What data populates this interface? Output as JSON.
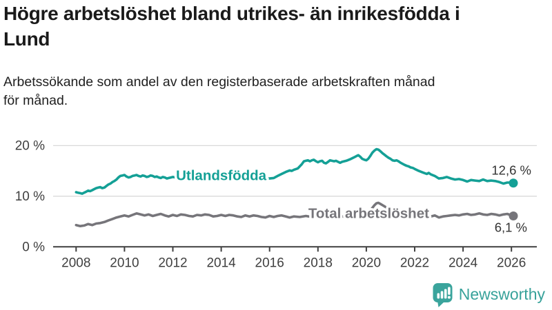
{
  "header": {
    "title": "Högre arbetslöshet bland utrikes- än inrikesfödda i\nLund",
    "subtitle": "Arbetssökande som andel av den registerbaserade arbetskraften månad\nför månad."
  },
  "footer": {
    "brand": "Newsworthy",
    "logo_icon": "bar-chart-speech-bubble-icon",
    "brand_color": "#38a29a"
  },
  "colors": {
    "accent_teal": "#14a096",
    "series_gray": "#76757a",
    "axis": "#3f3f3f",
    "gridline": "#d9d9d9",
    "value_label": "#333333"
  },
  "chart_data": {
    "type": "line",
    "title": "",
    "xlabel": "",
    "ylabel": "",
    "grid": "horizontal-only",
    "legend_position": "inline-on-line",
    "xlim": [
      2007.05,
      2027.05
    ],
    "ylim": [
      0,
      21.5
    ],
    "x_ticks": [
      2008,
      2010,
      2012,
      2014,
      2016,
      2018,
      2020,
      2022,
      2024,
      2026
    ],
    "x_tick_labels": [
      "2008",
      "2010",
      "2012",
      "2014",
      "2016",
      "2018",
      "2020",
      "2022",
      "2024",
      "2026"
    ],
    "y_ticks": [
      0,
      10,
      20
    ],
    "y_tick_labels": [
      "0 %",
      "10 %",
      "20 %"
    ],
    "series": [
      {
        "id": "utlandsfodda",
        "name": "Utlandsfödda",
        "color": "#14a096",
        "end_value": 12.6,
        "end_label": "12,6 %",
        "label_anchor": {
          "x": 2014.0,
          "y": 14.15
        },
        "value_label_offset": [
          26,
          -12
        ],
        "points": [
          [
            2008.0,
            10.8
          ],
          [
            2008.08,
            10.7
          ],
          [
            2008.17,
            10.6
          ],
          [
            2008.25,
            10.5
          ],
          [
            2008.33,
            10.7
          ],
          [
            2008.42,
            10.9
          ],
          [
            2008.5,
            11.1
          ],
          [
            2008.58,
            11.0
          ],
          [
            2008.67,
            11.2
          ],
          [
            2008.75,
            11.4
          ],
          [
            2008.83,
            11.6
          ],
          [
            2008.92,
            11.7
          ],
          [
            2009.0,
            11.8
          ],
          [
            2009.08,
            11.6
          ],
          [
            2009.17,
            11.7
          ],
          [
            2009.25,
            12.0
          ],
          [
            2009.33,
            12.3
          ],
          [
            2009.42,
            12.5
          ],
          [
            2009.5,
            12.8
          ],
          [
            2009.58,
            13.0
          ],
          [
            2009.67,
            13.3
          ],
          [
            2009.75,
            13.7
          ],
          [
            2009.83,
            14.0
          ],
          [
            2009.92,
            14.1
          ],
          [
            2010.0,
            14.2
          ],
          [
            2010.08,
            13.9
          ],
          [
            2010.17,
            13.7
          ],
          [
            2010.25,
            13.8
          ],
          [
            2010.33,
            14.0
          ],
          [
            2010.42,
            14.1
          ],
          [
            2010.5,
            14.2
          ],
          [
            2010.58,
            14.0
          ],
          [
            2010.67,
            13.9
          ],
          [
            2010.75,
            14.1
          ],
          [
            2010.83,
            14.0
          ],
          [
            2010.92,
            13.8
          ],
          [
            2011.0,
            13.9
          ],
          [
            2011.08,
            14.1
          ],
          [
            2011.17,
            14.0
          ],
          [
            2011.25,
            13.8
          ],
          [
            2011.33,
            13.9
          ],
          [
            2011.42,
            13.7
          ],
          [
            2011.5,
            13.6
          ],
          [
            2011.58,
            13.8
          ],
          [
            2011.67,
            13.7
          ],
          [
            2011.75,
            13.5
          ],
          [
            2011.83,
            13.6
          ],
          [
            2011.92,
            13.7
          ],
          [
            2012.0,
            13.8
          ],
          [
            2012.25,
            13.6
          ],
          [
            2012.5,
            13.7
          ],
          [
            2012.75,
            13.5
          ],
          [
            2013.0,
            13.6
          ],
          [
            2013.25,
            13.7
          ],
          [
            2013.5,
            13.5
          ],
          [
            2013.75,
            13.4
          ],
          [
            2014.0,
            13.6
          ],
          [
            2014.25,
            13.5
          ],
          [
            2014.5,
            13.6
          ],
          [
            2014.75,
            13.4
          ],
          [
            2015.0,
            13.5
          ],
          [
            2015.25,
            13.6
          ],
          [
            2015.5,
            13.4
          ],
          [
            2015.75,
            13.5
          ],
          [
            2016.0,
            13.5
          ],
          [
            2016.17,
            13.6
          ],
          [
            2016.33,
            14.0
          ],
          [
            2016.5,
            14.4
          ],
          [
            2016.67,
            14.8
          ],
          [
            2016.83,
            15.1
          ],
          [
            2016.92,
            15.0
          ],
          [
            2017.0,
            15.2
          ],
          [
            2017.17,
            15.5
          ],
          [
            2017.33,
            16.3
          ],
          [
            2017.42,
            16.9
          ],
          [
            2017.5,
            17.0
          ],
          [
            2017.58,
            17.1
          ],
          [
            2017.67,
            16.9
          ],
          [
            2017.75,
            17.1
          ],
          [
            2017.83,
            17.2
          ],
          [
            2017.92,
            16.9
          ],
          [
            2018.0,
            16.7
          ],
          [
            2018.08,
            16.9
          ],
          [
            2018.17,
            17.0
          ],
          [
            2018.25,
            16.6
          ],
          [
            2018.33,
            16.5
          ],
          [
            2018.42,
            16.8
          ],
          [
            2018.5,
            17.1
          ],
          [
            2018.58,
            17.0
          ],
          [
            2018.67,
            16.9
          ],
          [
            2018.75,
            17.0
          ],
          [
            2018.83,
            16.8
          ],
          [
            2018.92,
            16.6
          ],
          [
            2019.0,
            16.8
          ],
          [
            2019.17,
            17.0
          ],
          [
            2019.33,
            17.3
          ],
          [
            2019.5,
            17.7
          ],
          [
            2019.58,
            17.9
          ],
          [
            2019.67,
            18.1
          ],
          [
            2019.75,
            17.8
          ],
          [
            2019.83,
            17.4
          ],
          [
            2019.92,
            17.2
          ],
          [
            2020.0,
            17.1
          ],
          [
            2020.08,
            17.4
          ],
          [
            2020.17,
            18.0
          ],
          [
            2020.25,
            18.6
          ],
          [
            2020.33,
            19.0
          ],
          [
            2020.42,
            19.3
          ],
          [
            2020.5,
            19.2
          ],
          [
            2020.58,
            18.9
          ],
          [
            2020.67,
            18.5
          ],
          [
            2020.75,
            18.2
          ],
          [
            2020.83,
            17.9
          ],
          [
            2020.92,
            17.6
          ],
          [
            2021.0,
            17.4
          ],
          [
            2021.08,
            17.1
          ],
          [
            2021.17,
            17.0
          ],
          [
            2021.25,
            17.1
          ],
          [
            2021.33,
            16.9
          ],
          [
            2021.42,
            16.6
          ],
          [
            2021.5,
            16.4
          ],
          [
            2021.58,
            16.2
          ],
          [
            2021.67,
            16.0
          ],
          [
            2021.75,
            15.9
          ],
          [
            2021.83,
            15.7
          ],
          [
            2021.92,
            15.6
          ],
          [
            2022.0,
            15.4
          ],
          [
            2022.17,
            15.0
          ],
          [
            2022.33,
            14.7
          ],
          [
            2022.5,
            14.4
          ],
          [
            2022.58,
            14.6
          ],
          [
            2022.67,
            14.3
          ],
          [
            2022.83,
            14.0
          ],
          [
            2023.0,
            13.5
          ],
          [
            2023.17,
            13.6
          ],
          [
            2023.33,
            13.8
          ],
          [
            2023.5,
            13.5
          ],
          [
            2023.67,
            13.3
          ],
          [
            2023.83,
            13.4
          ],
          [
            2024.0,
            13.2
          ],
          [
            2024.17,
            12.9
          ],
          [
            2024.33,
            13.2
          ],
          [
            2024.5,
            13.1
          ],
          [
            2024.67,
            13.0
          ],
          [
            2024.83,
            13.3
          ],
          [
            2025.0,
            13.0
          ],
          [
            2025.17,
            13.1
          ],
          [
            2025.33,
            13.0
          ],
          [
            2025.5,
            12.8
          ],
          [
            2025.67,
            12.5
          ],
          [
            2025.83,
            12.7
          ],
          [
            2026.0,
            12.7
          ],
          [
            2026.08,
            12.6
          ]
        ]
      },
      {
        "id": "total-arbetsloshet",
        "name": "Total arbetslöshet",
        "color": "#76757a",
        "end_value": 6.1,
        "end_label": "6,1 %",
        "label_anchor": {
          "x": 2020.1,
          "y": 6.67
        },
        "value_label_offset": [
          20,
          23
        ],
        "points": [
          [
            2008.0,
            4.3
          ],
          [
            2008.17,
            4.1
          ],
          [
            2008.33,
            4.2
          ],
          [
            2008.5,
            4.5
          ],
          [
            2008.67,
            4.3
          ],
          [
            2008.83,
            4.6
          ],
          [
            2009.0,
            4.7
          ],
          [
            2009.17,
            4.9
          ],
          [
            2009.33,
            5.2
          ],
          [
            2009.5,
            5.5
          ],
          [
            2009.67,
            5.8
          ],
          [
            2009.83,
            6.0
          ],
          [
            2010.0,
            6.2
          ],
          [
            2010.17,
            6.0
          ],
          [
            2010.33,
            6.3
          ],
          [
            2010.5,
            6.6
          ],
          [
            2010.67,
            6.4
          ],
          [
            2010.83,
            6.2
          ],
          [
            2011.0,
            6.4
          ],
          [
            2011.17,
            6.1
          ],
          [
            2011.33,
            6.3
          ],
          [
            2011.5,
            6.5
          ],
          [
            2011.67,
            6.2
          ],
          [
            2011.83,
            6.0
          ],
          [
            2012.0,
            6.3
          ],
          [
            2012.17,
            6.1
          ],
          [
            2012.33,
            6.4
          ],
          [
            2012.5,
            6.3
          ],
          [
            2012.67,
            6.1
          ],
          [
            2012.83,
            6.0
          ],
          [
            2013.0,
            6.3
          ],
          [
            2013.17,
            6.2
          ],
          [
            2013.33,
            6.4
          ],
          [
            2013.5,
            6.3
          ],
          [
            2013.67,
            6.0
          ],
          [
            2013.83,
            6.1
          ],
          [
            2014.0,
            6.3
          ],
          [
            2014.17,
            6.1
          ],
          [
            2014.33,
            6.3
          ],
          [
            2014.5,
            6.2
          ],
          [
            2014.67,
            6.0
          ],
          [
            2014.83,
            5.9
          ],
          [
            2015.0,
            6.2
          ],
          [
            2015.17,
            6.0
          ],
          [
            2015.33,
            6.2
          ],
          [
            2015.5,
            6.1
          ],
          [
            2015.67,
            5.9
          ],
          [
            2015.83,
            5.8
          ],
          [
            2016.0,
            6.1
          ],
          [
            2016.17,
            5.9
          ],
          [
            2016.33,
            6.1
          ],
          [
            2016.5,
            6.2
          ],
          [
            2016.67,
            6.0
          ],
          [
            2016.83,
            5.8
          ],
          [
            2017.0,
            6.0
          ],
          [
            2017.25,
            5.9
          ],
          [
            2017.5,
            6.1
          ],
          [
            2017.75,
            5.9
          ],
          [
            2018.0,
            6.0
          ],
          [
            2018.25,
            5.8
          ],
          [
            2018.5,
            6.0
          ],
          [
            2018.75,
            5.9
          ],
          [
            2019.0,
            6.0
          ],
          [
            2019.25,
            5.9
          ],
          [
            2019.5,
            6.1
          ],
          [
            2019.75,
            6.2
          ],
          [
            2020.0,
            6.5
          ],
          [
            2020.17,
            7.2
          ],
          [
            2020.33,
            8.2
          ],
          [
            2020.42,
            8.6
          ],
          [
            2020.5,
            8.7
          ],
          [
            2020.58,
            8.5
          ],
          [
            2020.75,
            8.0
          ],
          [
            2020.92,
            7.5
          ],
          [
            2021.0,
            7.2
          ],
          [
            2021.25,
            6.8
          ],
          [
            2021.5,
            6.6
          ],
          [
            2021.75,
            6.3
          ],
          [
            2022.0,
            6.1
          ],
          [
            2022.25,
            5.9
          ],
          [
            2022.5,
            5.8
          ],
          [
            2022.67,
            6.0
          ],
          [
            2022.83,
            6.2
          ],
          [
            2023.0,
            5.8
          ],
          [
            2023.17,
            6.0
          ],
          [
            2023.33,
            6.1
          ],
          [
            2023.5,
            6.2
          ],
          [
            2023.67,
            6.3
          ],
          [
            2023.83,
            6.2
          ],
          [
            2024.0,
            6.4
          ],
          [
            2024.17,
            6.5
          ],
          [
            2024.33,
            6.3
          ],
          [
            2024.5,
            6.4
          ],
          [
            2024.67,
            6.6
          ],
          [
            2024.83,
            6.4
          ],
          [
            2025.0,
            6.3
          ],
          [
            2025.17,
            6.5
          ],
          [
            2025.33,
            6.4
          ],
          [
            2025.5,
            6.2
          ],
          [
            2025.67,
            6.4
          ],
          [
            2025.83,
            6.5
          ],
          [
            2026.0,
            6.2
          ],
          [
            2026.08,
            6.1
          ]
        ]
      }
    ]
  }
}
